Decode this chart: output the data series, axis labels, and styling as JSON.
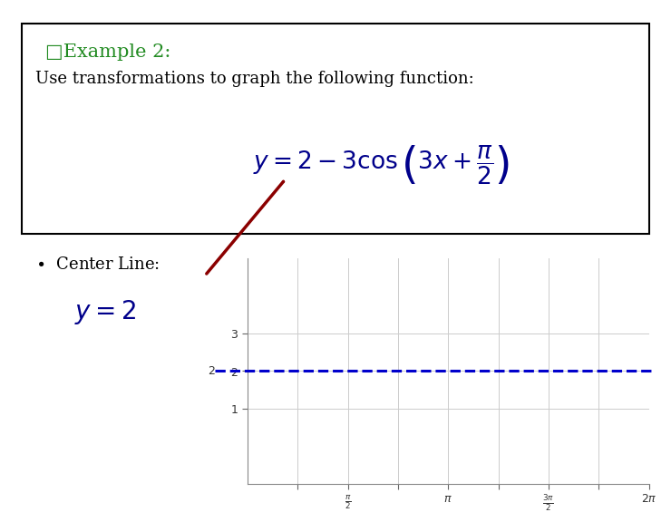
{
  "title_checkbox": "□Example 2:",
  "subtitle": "Use transformations to graph the following function:",
  "background_color": "#ffffff",
  "box_edge_color": "#000000",
  "formula_color": "#00008B",
  "title_color": "#228B22",
  "text_color": "#000000",
  "dashed_line_color": "#0000CC",
  "dashed_line_y": 2.0,
  "graph_xlim": [
    0,
    6.283185307
  ],
  "graph_ylim": [
    -1,
    5
  ],
  "graph_yticks": [
    1,
    2,
    3
  ],
  "graph_xtick_positions": [
    0.7853981634,
    1.5707963268,
    2.3561944902,
    3.1415926536,
    3.926990817,
    4.7123889804,
    5.497787144,
    6.283185307
  ],
  "graph_xtick_labels": [
    "",
    "\\frac{\\pi}{2}",
    "",
    "\\pi",
    "",
    "\\frac{3\\pi}{2}",
    "",
    "2\\pi"
  ],
  "arrow_color": "#8B0000",
  "centerline_formula_color": "#00008B"
}
